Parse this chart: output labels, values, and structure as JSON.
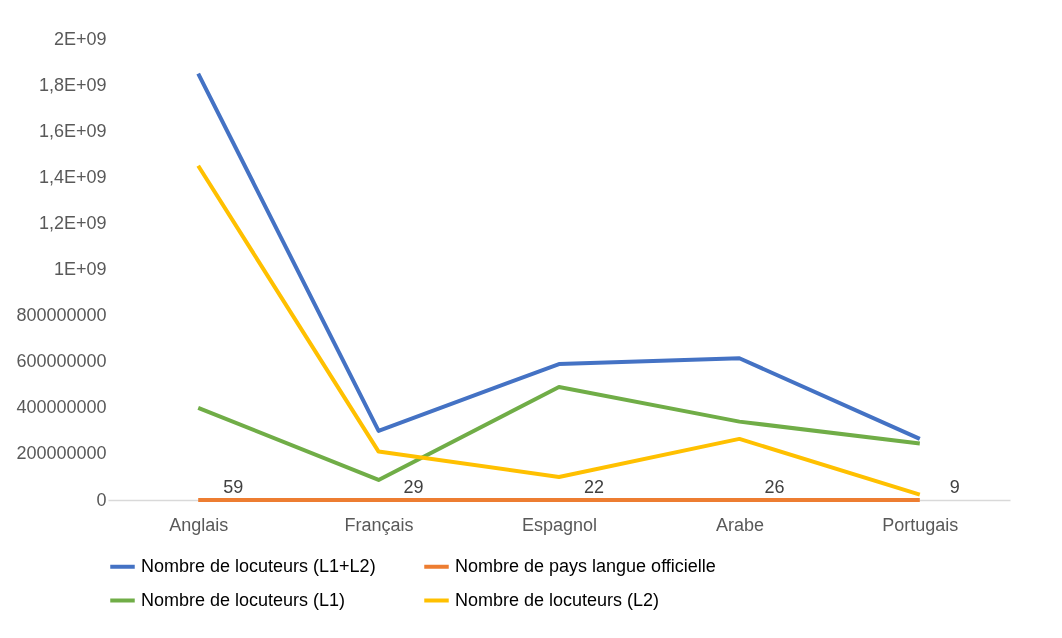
{
  "chart_data": {
    "type": "line",
    "categories": [
      "Anglais",
      "Français",
      "Espagnol",
      "Arabe",
      "Portugais"
    ],
    "series": [
      {
        "name": "Nombre de locuteurs (L1+L2)",
        "color": "#4472c4",
        "values": [
          1850000000,
          300000000,
          590000000,
          615000000,
          265000000
        ]
      },
      {
        "name": "Nombre de pays  langue officielle",
        "color": "#ed7d31",
        "values": [
          59,
          29,
          22,
          26,
          9
        ],
        "value_labels": [
          "59",
          "29",
          "22",
          "26",
          "9"
        ]
      },
      {
        "name": "Nombre de locuteurs (L1)",
        "color": "#70ad47",
        "values": [
          400000000,
          87000000,
          490000000,
          340000000,
          245000000
        ]
      },
      {
        "name": "Nombre de locuteurs (L2)",
        "color": "#ffc000",
        "values": [
          1450000000,
          210000000,
          100000000,
          265000000,
          23000000
        ]
      }
    ],
    "ylim": [
      0,
      2000000000
    ],
    "yticks": [
      0,
      200000000,
      400000000,
      600000000,
      800000000,
      {
        "value": 1000000000,
        "label": "1E+09"
      },
      {
        "value": 1200000000,
        "label": "1,2E+09"
      },
      {
        "value": 1400000000,
        "label": "1,4E+09"
      },
      {
        "value": 1600000000,
        "label": "1,6E+09"
      },
      {
        "value": 1800000000,
        "label": "1,8E+09"
      },
      {
        "value": 2000000000,
        "label": "2E+09"
      }
    ],
    "grid": false,
    "legend": "bottom",
    "marker": "none",
    "line_style": "solid"
  }
}
